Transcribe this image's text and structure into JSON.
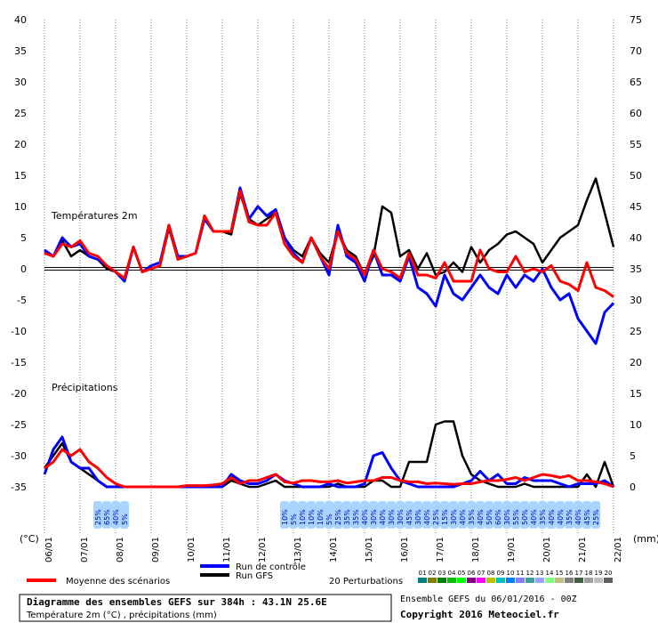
{
  "chart_data": {
    "type": "line",
    "title": "Diagramme des ensembles GEFS sur 384h : 43.1N 25.6E",
    "subtitle": "Température 2m (°C) , précipitations (mm)",
    "temperature_label": "Températures 2m",
    "precipitation_label": "Précipitations",
    "ylabel": "(°C)",
    "y2label": "(mm)",
    "ensemble_info": "Ensemble GEFS du 06/01/2016 - 00Z",
    "copyright": "Copyright 2016 Meteociel.fr",
    "x": [
      0,
      6,
      12,
      18,
      24,
      30,
      36,
      42,
      48,
      54,
      60,
      66,
      72,
      78,
      84,
      90,
      96,
      102,
      108,
      114,
      120,
      126,
      132,
      138,
      144,
      150,
      156,
      162,
      168,
      174,
      180,
      186,
      192,
      198,
      204,
      210,
      216,
      222,
      228,
      234,
      240,
      246,
      252,
      258,
      264,
      270,
      276,
      282,
      288,
      294,
      300,
      306,
      312,
      318,
      324,
      330,
      336,
      342,
      348,
      354,
      360,
      366,
      372,
      378,
      384
    ],
    "xlim": [
      0,
      384
    ],
    "xticks": [
      {
        "value": 0,
        "label": "06/01"
      },
      {
        "value": 24,
        "label": "07/01"
      },
      {
        "value": 48,
        "label": "08/01"
      },
      {
        "value": 72,
        "label": "09/01"
      },
      {
        "value": 96,
        "label": "10/01"
      },
      {
        "value": 120,
        "label": "11/01"
      },
      {
        "value": 144,
        "label": "12/01"
      },
      {
        "value": 168,
        "label": "13/01"
      },
      {
        "value": 192,
        "label": "14/01"
      },
      {
        "value": 216,
        "label": "15/01"
      },
      {
        "value": 240,
        "label": "16/01"
      },
      {
        "value": 264,
        "label": "17/01"
      },
      {
        "value": 288,
        "label": "18/01"
      },
      {
        "value": 312,
        "label": "19/01"
      },
      {
        "value": 336,
        "label": "20/01"
      },
      {
        "value": 360,
        "label": "21/01"
      },
      {
        "value": 384,
        "label": "22/01"
      }
    ],
    "ylim": [
      -35,
      40
    ],
    "yticks": [
      -35,
      -30,
      -25,
      -20,
      -15,
      -10,
      -5,
      0,
      5,
      10,
      15,
      20,
      25,
      30,
      35,
      40
    ],
    "y2lim": [
      0,
      75
    ],
    "y2ticks": [
      0,
      5,
      10,
      15,
      20,
      25,
      30,
      35,
      40,
      45,
      50,
      55,
      60,
      65,
      70,
      75
    ],
    "grid": true,
    "series": [
      {
        "name": "Moyenne des scénarios",
        "color": "#ff0000",
        "width": 3,
        "values": [
          2.5,
          2,
          4,
          3.5,
          4.5,
          2.5,
          2,
          0.5,
          -0.5,
          -1.5,
          3.5,
          -0.5,
          0,
          0.5,
          7,
          1.5,
          2,
          2.5,
          8.5,
          6,
          6,
          6,
          12.5,
          7.5,
          7,
          7,
          9,
          4,
          2,
          1,
          5,
          2,
          0,
          6,
          2.5,
          1.5,
          -1,
          3,
          0,
          -0.5,
          -1.5,
          2.5,
          -1,
          -1,
          -1.5,
          1,
          -2,
          -2,
          -2,
          3,
          0,
          -0.5,
          -0.5,
          2,
          -0.5,
          0,
          -0.5,
          0.5,
          -2,
          -2.5,
          -3.5,
          1,
          -3,
          -3.5,
          -4.5
        ],
        "precipitation": [
          3,
          4,
          6,
          5,
          6,
          4,
          3,
          1.5,
          0.5,
          0,
          0,
          0,
          0,
          0,
          0,
          0,
          0.2,
          0.2,
          0.2,
          0.3,
          0.5,
          1.5,
          0.5,
          1,
          1,
          1.5,
          2,
          0.8,
          0.6,
          1,
          1,
          0.8,
          0.8,
          1,
          0.6,
          0.8,
          1,
          1,
          1.5,
          1.5,
          1,
          0.8,
          0.8,
          0.5,
          0.6,
          0.5,
          0.4,
          0.5,
          0.5,
          0.8,
          1,
          1,
          1.2,
          1.5,
          1,
          1.5,
          2,
          1.8,
          1.5,
          1.8,
          1,
          1,
          0.8,
          0.5,
          0
        ]
      },
      {
        "name": "Run de contrôle",
        "color": "#0000ff",
        "width": 3,
        "values": [
          3,
          2,
          5,
          3.5,
          4,
          2,
          1.5,
          0.5,
          -0.5,
          -2,
          3.5,
          -0.5,
          0.5,
          1,
          7,
          2,
          2,
          2.5,
          8,
          6,
          6,
          6,
          13,
          8,
          10,
          8.5,
          9.5,
          5,
          2.5,
          1,
          5,
          2,
          -1,
          7,
          2,
          1,
          -2,
          3,
          -1,
          -1,
          -2,
          2,
          -3,
          -4,
          -6,
          -1,
          -4,
          -5,
          -3,
          -1,
          -3,
          -4,
          -1,
          -3,
          -1,
          -2,
          0,
          -3,
          -5,
          -4,
          -8,
          -10,
          -12,
          -7,
          -5.5
        ],
        "precipitation": [
          2,
          6,
          8,
          4,
          3,
          3,
          1,
          0,
          0,
          0,
          0,
          0,
          0,
          0,
          0,
          0,
          0,
          0,
          0,
          0,
          0,
          2,
          1,
          0.5,
          0.5,
          1,
          2,
          1,
          0.5,
          0,
          0,
          0,
          0.5,
          0,
          0,
          0,
          0.5,
          5,
          5.5,
          3,
          1,
          0.5,
          0,
          0,
          0,
          0,
          0,
          0.5,
          1,
          2.5,
          1,
          2,
          0.5,
          0.5,
          1.5,
          1,
          1,
          1,
          0.5,
          0,
          0.5,
          0.5,
          0.5,
          1,
          0
        ]
      },
      {
        "name": "Run GFS",
        "color": "#000000",
        "width": 2.5,
        "values": [
          2.5,
          2,
          4.5,
          2,
          3,
          2,
          1.5,
          0,
          -0.5,
          -1.5,
          3.5,
          -0.5,
          0,
          0.5,
          6.5,
          1.5,
          2,
          2.5,
          8,
          6,
          6,
          5.5,
          12,
          8,
          7,
          8,
          9,
          5,
          3,
          2,
          5,
          2.5,
          1,
          6,
          3,
          2,
          -1,
          2,
          10,
          9,
          2,
          3,
          0,
          2.5,
          -1,
          -0.5,
          1,
          -0.5,
          3.5,
          1,
          3,
          4,
          5.5,
          6,
          5,
          4,
          1,
          3,
          5,
          6,
          7,
          11,
          14.5,
          9,
          3.5
        ],
        "precipitation": [
          3,
          5,
          7,
          4,
          3,
          2,
          1,
          0,
          0,
          0,
          0,
          0,
          0,
          0,
          0,
          0,
          0,
          0,
          0,
          0,
          0,
          1,
          0.5,
          0,
          0,
          0.5,
          1,
          0,
          0,
          0,
          0,
          0,
          0,
          0.5,
          0,
          0,
          0,
          1,
          1,
          0,
          0,
          4,
          4,
          4,
          10,
          10.5,
          10.5,
          5,
          2,
          1,
          0.5,
          0,
          0,
          0,
          0.5,
          0,
          0,
          0,
          0,
          0,
          0,
          2,
          0,
          4,
          0
        ]
      }
    ],
    "perturbations": {
      "label": "20 Perturbations",
      "members": [
        {
          "name": "01",
          "color": "#008080"
        },
        {
          "name": "02",
          "color": "#808000"
        },
        {
          "name": "03",
          "color": "#008000"
        },
        {
          "name": "04",
          "color": "#00c000"
        },
        {
          "name": "05",
          "color": "#00ff00"
        },
        {
          "name": "06",
          "color": "#800080"
        },
        {
          "name": "07",
          "color": "#ff00ff"
        },
        {
          "name": "08",
          "color": "#c0c000"
        },
        {
          "name": "09",
          "color": "#00c0c0"
        },
        {
          "name": "10",
          "color": "#0080ff"
        },
        {
          "name": "11",
          "color": "#8080ff"
        },
        {
          "name": "12",
          "color": "#40a0a0"
        },
        {
          "name": "13",
          "color": "#a0a0ff"
        },
        {
          "name": "14",
          "color": "#80ff80"
        },
        {
          "name": "15",
          "color": "#c0c080"
        },
        {
          "name": "16",
          "color": "#808080"
        },
        {
          "name": "17",
          "color": "#406040"
        },
        {
          "name": "18",
          "color": "#a0a0a0"
        },
        {
          "name": "19",
          "color": "#c0c0c0"
        },
        {
          "name": "20",
          "color": "#606060"
        }
      ]
    },
    "rain_probability": [
      null,
      null,
      null,
      null,
      null,
      null,
      "25%",
      "65%",
      "40%",
      "5%",
      null,
      null,
      null,
      null,
      null,
      null,
      null,
      null,
      null,
      null,
      null,
      null,
      null,
      null,
      null,
      null,
      null,
      "10%",
      "5%",
      "10%",
      "10%",
      "10%",
      "5%",
      "25%",
      "35%",
      "35%",
      "40%",
      "30%",
      "40%",
      "30%",
      "30%",
      "45%",
      "30%",
      "40%",
      "25%",
      "15%",
      "30%",
      "40%",
      "35%",
      "40%",
      "50%",
      "60%",
      "30%",
      "55%",
      "50%",
      "40%",
      "35%",
      "40%",
      "40%",
      "35%",
      "40%",
      "45%",
      "25%",
      null,
      null
    ]
  }
}
